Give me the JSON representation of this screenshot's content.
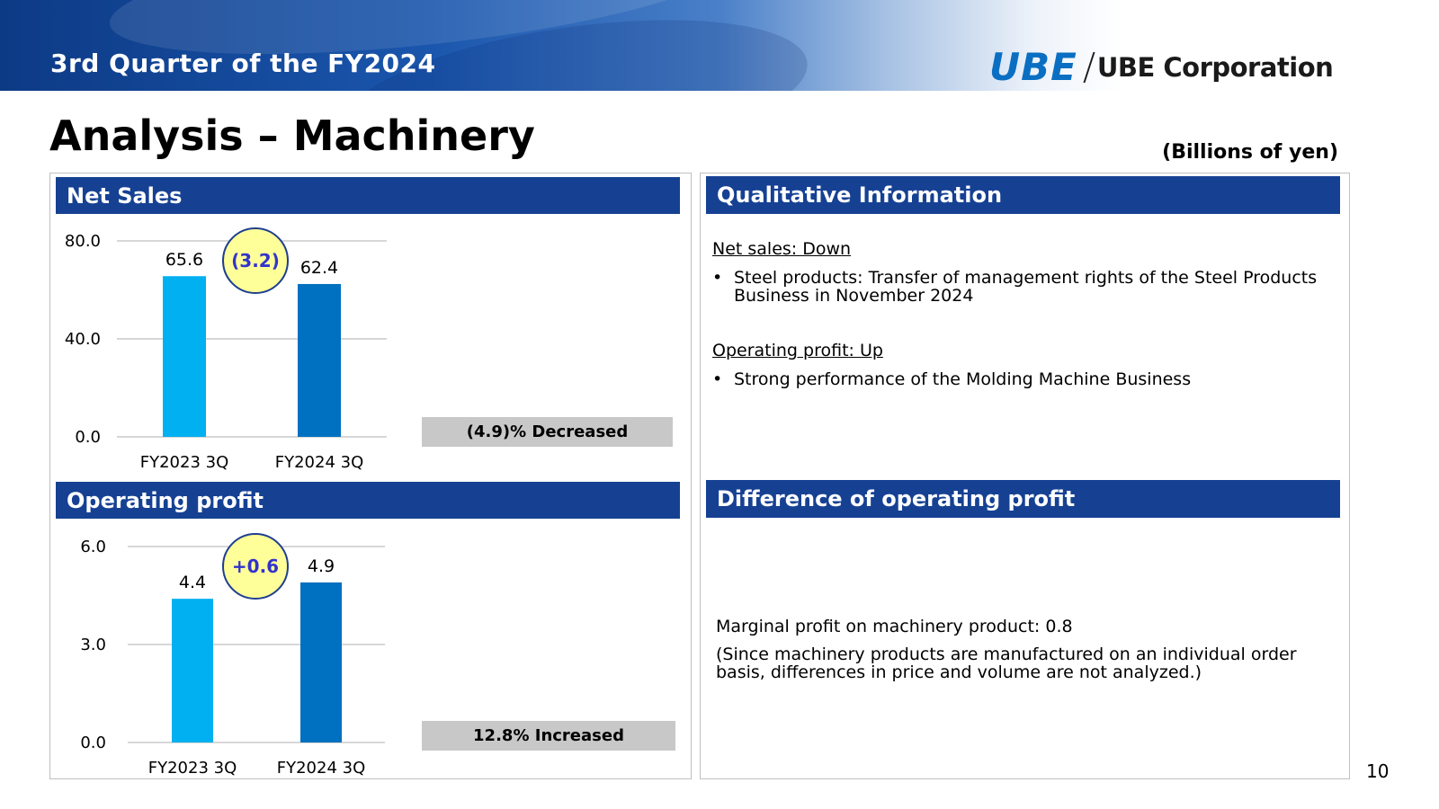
{
  "header": {
    "quarter_label": "3rd Quarter of the FY2024",
    "logo_mark": "UBE",
    "company_name": "UBE Corporation"
  },
  "page_title": "Analysis – Machinery",
  "units": "(Billions of yen)",
  "left": {
    "net_sales_title": "Net Sales",
    "operating_profit_title": "Operating profit",
    "net_sales_change_pct": "(4.9)% Decreased",
    "operating_profit_change_pct": "12.8% Increased"
  },
  "right": {
    "qualitative_title": "Qualitative Information",
    "net_sales_heading": "Net sales: Down",
    "net_sales_bullet": "Steel products: Transfer of management rights of the Steel Products Business in November 2024",
    "op_heading": "Operating profit: Up",
    "op_bullet": "Strong performance of the Molding Machine Business",
    "difference_title": "Difference of operating profit",
    "marginal_profit": "Marginal profit on machinery product: 0.8",
    "note": "(Since machinery products are manufactured on an individual order basis, differences in price and volume are not analyzed.)"
  },
  "bullet_char": "•",
  "page_number": "10",
  "colors": {
    "header_navy": "#164193",
    "bar_fy2023": "#00b0f0",
    "bar_fy2024": "#0070c0",
    "badge_fill": "#ffff99",
    "badge_text": "#3333cc",
    "pct_box": "#c8c8c8"
  },
  "chart_data": [
    {
      "type": "bar",
      "title": "Net Sales",
      "categories": [
        "FY2023 3Q",
        "FY2024 3Q"
      ],
      "values": [
        65.6,
        62.4
      ],
      "value_labels": [
        "65.6",
        "62.4"
      ],
      "ylim": [
        0,
        80
      ],
      "yticks": [
        "0.0",
        "40.0",
        "80.0"
      ],
      "ytick_values": [
        0,
        40,
        80
      ],
      "difference": "(3.2)",
      "grid": true
    },
    {
      "type": "bar",
      "title": "Operating profit",
      "categories": [
        "FY2023 3Q",
        "FY2024 3Q"
      ],
      "values": [
        4.4,
        4.9
      ],
      "value_labels": [
        "4.4",
        "4.9"
      ],
      "ylim": [
        0,
        6
      ],
      "yticks": [
        "0.0",
        "3.0",
        "6.0"
      ],
      "ytick_values": [
        0,
        3,
        6
      ],
      "difference": "+0.6",
      "grid": true
    }
  ]
}
